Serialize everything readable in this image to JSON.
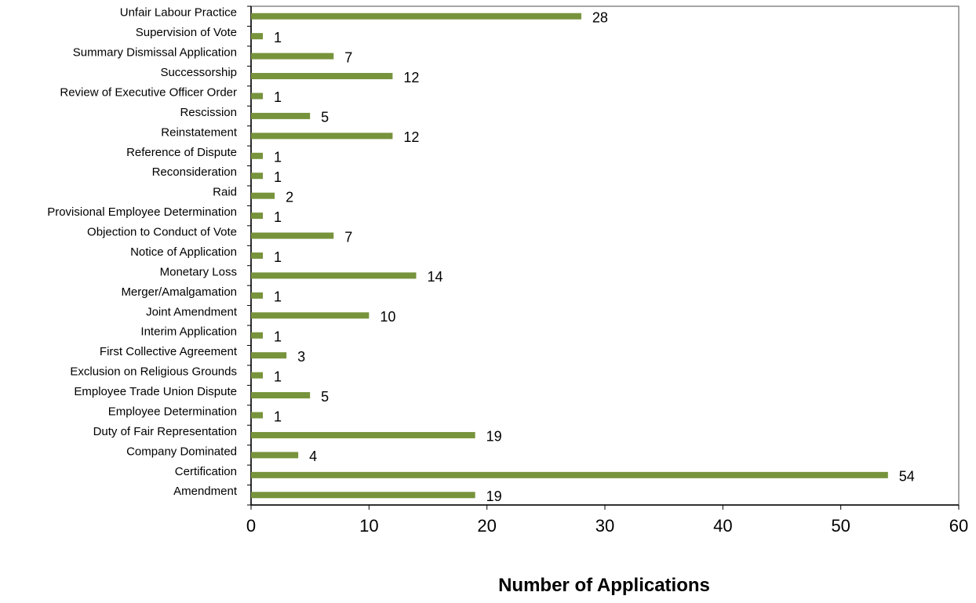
{
  "chart_data": {
    "type": "bar",
    "orientation": "horizontal",
    "title": "",
    "xlabel": "Number of Applications",
    "ylabel": "",
    "xlim": [
      0,
      60
    ],
    "x_ticks": [
      0,
      10,
      20,
      30,
      40,
      50,
      60
    ],
    "grid": false,
    "legend": "none",
    "bar_color": "#77933C",
    "categories": [
      "Unfair Labour Practice",
      "Supervision of Vote",
      "Summary Dismissal Application",
      "Successorship",
      "Review of Executive Officer Order",
      "Rescission",
      "Reinstatement",
      "Reference of Dispute",
      "Reconsideration",
      "Raid",
      "Provisional Employee Determination",
      "Objection to Conduct of Vote",
      "Notice of Application",
      "Monetary Loss",
      "Merger/Amalgamation",
      "Joint Amendment",
      "Interim Application",
      "First Collective Agreement",
      "Exclusion on Religious Grounds",
      "Employee Trade Union Dispute",
      "Employee Determination",
      "Duty of Fair Representation",
      "Company Dominated",
      "Certification",
      "Amendment"
    ],
    "values": [
      28,
      1,
      7,
      12,
      1,
      5,
      12,
      1,
      1,
      2,
      1,
      7,
      1,
      14,
      1,
      10,
      1,
      3,
      1,
      5,
      1,
      19,
      4,
      54,
      19
    ]
  }
}
